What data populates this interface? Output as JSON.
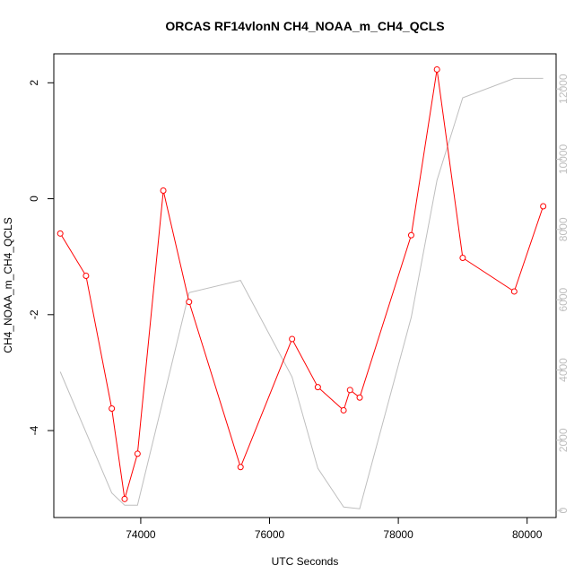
{
  "chart_data": {
    "type": "line",
    "title": "ORCAS RF14vlonN CH4_NOAA_m_CH4_QCLS",
    "xlabel": "UTC Seconds",
    "ylabel": "CH4_NOAA_m_CH4_QCLS",
    "xlim": [
      72650,
      80450
    ],
    "ylim": [
      -5.5,
      2.5
    ],
    "ylim_right": [
      -200,
      13000
    ],
    "x_ticks": [
      74000,
      76000,
      78000,
      80000
    ],
    "y_ticks": [
      -4,
      -2,
      0,
      2
    ],
    "y_ticks_right": [
      0,
      2000,
      4000,
      6000,
      8000,
      10000,
      12000
    ],
    "grid": false,
    "legend": "none",
    "series": [
      {
        "axis": "left",
        "color": "#ff0000",
        "markers": "open-circle",
        "x": [
          72750,
          73150,
          73550,
          73750,
          73950,
          74350,
          74750,
          75550,
          76350,
          76750,
          77150,
          77250,
          77400,
          78200,
          78600,
          79000,
          79800,
          80250
        ],
        "y": [
          -0.6,
          -1.33,
          -3.62,
          -5.18,
          -4.4,
          0.14,
          -1.78,
          -4.63,
          -2.42,
          -3.25,
          -3.65,
          -3.3,
          -3.43,
          -0.63,
          2.23,
          -1.02,
          -1.6,
          -0.13
        ]
      },
      {
        "axis": "right",
        "color": "#bebebe",
        "markers": "none",
        "x": [
          72750,
          73550,
          73750,
          73950,
          74750,
          75550,
          76350,
          76750,
          77150,
          77400,
          78200,
          78600,
          79000,
          79800,
          80250
        ],
        "y": [
          3950,
          500,
          150,
          150,
          6200,
          6550,
          3800,
          1200,
          100,
          50,
          5500,
          9400,
          11750,
          12300,
          12300
        ]
      }
    ]
  }
}
